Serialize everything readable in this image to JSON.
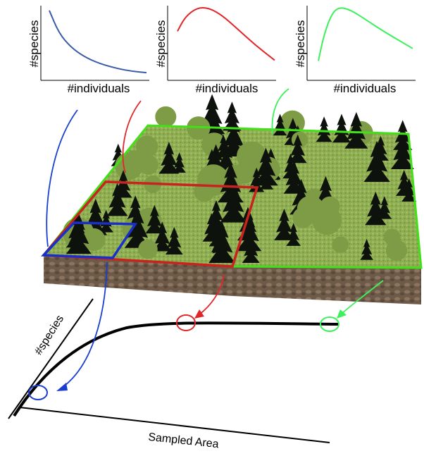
{
  "panels": [
    {
      "id": "blue",
      "xlabel": "#individuals",
      "ylabel": "#species",
      "color": "#3a5aa8",
      "curve": [
        [
          0.0,
          0.95
        ],
        [
          0.1,
          0.62
        ],
        [
          0.22,
          0.42
        ],
        [
          0.36,
          0.28
        ],
        [
          0.52,
          0.18
        ],
        [
          0.7,
          0.11
        ],
        [
          0.85,
          0.07
        ],
        [
          1.0,
          0.05
        ]
      ]
    },
    {
      "id": "red",
      "xlabel": "#individuals",
      "ylabel": "#species",
      "color": "#e0262b",
      "curve": [
        [
          0.0,
          0.65
        ],
        [
          0.08,
          0.86
        ],
        [
          0.2,
          0.99
        ],
        [
          0.32,
          0.99
        ],
        [
          0.46,
          0.88
        ],
        [
          0.62,
          0.68
        ],
        [
          0.8,
          0.45
        ],
        [
          1.0,
          0.23
        ]
      ]
    },
    {
      "id": "green",
      "xlabel": "#individuals",
      "ylabel": "#species",
      "color": "#3df05c",
      "curve": [
        [
          0.0,
          0.22
        ],
        [
          0.06,
          0.6
        ],
        [
          0.14,
          0.9
        ],
        [
          0.22,
          1.0
        ],
        [
          0.34,
          0.96
        ],
        [
          0.5,
          0.82
        ],
        [
          0.7,
          0.64
        ],
        [
          1.0,
          0.4
        ]
      ]
    }
  ],
  "main_curve": {
    "xlabel": "Sampled Area",
    "ylabel": "#species",
    "line_color": "#000000",
    "markers": [
      {
        "name": "blue",
        "color": "#1a3fd0"
      },
      {
        "name": "red",
        "color": "#e0262b"
      },
      {
        "name": "green",
        "color": "#3df05c"
      }
    ]
  },
  "scene": {
    "plot_colors": {
      "blue": "#1a2fc8",
      "red": "#c8241f",
      "green": "#42e018"
    },
    "ground_color": "#8fae52",
    "soil_color": "#6e5a48",
    "tree_color": "#0e120c"
  }
}
